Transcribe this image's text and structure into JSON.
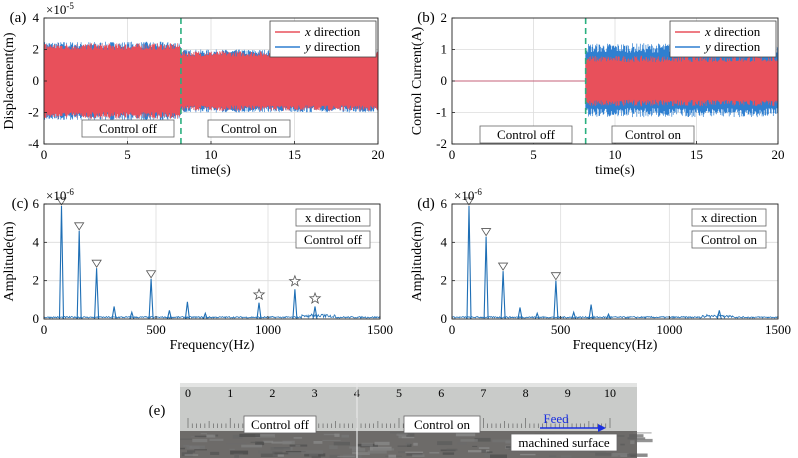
{
  "chart_data": [
    {
      "panel": "(a)",
      "type": "line",
      "xlabel": "time(s)",
      "ylabel": "Displacement(m)",
      "exponent_label": "×10",
      "exponent_power": "-5",
      "xlim": [
        0,
        20
      ],
      "ylim": [
        -4,
        4
      ],
      "xticks": [
        "0",
        "5",
        "10",
        "15",
        "20"
      ],
      "yticks": [
        "-4",
        "-2",
        "0",
        "2",
        "4"
      ],
      "switch_time": 8.2,
      "series": [
        {
          "name": "x direction",
          "color": "#e8505b",
          "envelope_before": [
            -2.4,
            2.4
          ],
          "envelope_after": [
            -1.9,
            1.9
          ]
        },
        {
          "name": "y direction",
          "color": "#2f7fd0",
          "envelope_before": [
            -2.5,
            2.5
          ],
          "envelope_after": [
            -2.0,
            2.0
          ]
        }
      ],
      "legend": {
        "placement": "top-right",
        "entries": [
          {
            "italic": "x",
            "text": " direction"
          },
          {
            "italic": "y",
            "text": " direction"
          }
        ]
      },
      "annotations": [
        "Control off",
        "Control on"
      ]
    },
    {
      "panel": "(b)",
      "type": "line",
      "xlabel": "time(s)",
      "ylabel": "Control Current(A)",
      "xlim": [
        0,
        20
      ],
      "ylim": [
        -2,
        2
      ],
      "xticks": [
        "0",
        "5",
        "10",
        "15",
        "20"
      ],
      "yticks": [
        "-2",
        "-1",
        "0",
        "1",
        "2"
      ],
      "switch_time": 8.2,
      "series": [
        {
          "name": "x direction",
          "color": "#e8505b",
          "value_before": 0,
          "envelope_after": [
            -0.8,
            0.8
          ]
        },
        {
          "name": "y direction",
          "color": "#2f7fd0",
          "value_before": 0,
          "envelope_after": [
            -1.15,
            1.2
          ]
        }
      ],
      "legend": {
        "placement": "top-right",
        "entries": [
          {
            "italic": "x",
            "text": " direction"
          },
          {
            "italic": "y",
            "text": " direction"
          }
        ]
      },
      "annotations": [
        "Control off",
        "Control on"
      ]
    },
    {
      "panel": "(c)",
      "type": "line",
      "xlabel": "Frequency(Hz)",
      "ylabel": "Amplitude(m)",
      "exponent_label": "×10",
      "exponent_power": "-6",
      "xlim": [
        0,
        1500
      ],
      "ylim": [
        0,
        6
      ],
      "xticks": [
        "0",
        "500",
        "1000",
        "1500"
      ],
      "yticks": [
        "0",
        "2",
        "4",
        "6"
      ],
      "color": "#1f6fb5",
      "peaks": [
        {
          "f": 78,
          "a": 5.9,
          "marker": "triangle"
        },
        {
          "f": 157,
          "a": 4.6,
          "marker": "triangle"
        },
        {
          "f": 235,
          "a": 2.65,
          "marker": "triangle"
        },
        {
          "f": 313,
          "a": 0.65
        },
        {
          "f": 392,
          "a": 0.35
        },
        {
          "f": 478,
          "a": 2.1,
          "marker": "triangle"
        },
        {
          "f": 560,
          "a": 0.45
        },
        {
          "f": 640,
          "a": 0.9
        },
        {
          "f": 720,
          "a": 0.3
        },
        {
          "f": 960,
          "a": 0.85,
          "marker": "star"
        },
        {
          "f": 1120,
          "a": 1.55,
          "marker": "star"
        },
        {
          "f": 1210,
          "a": 0.65,
          "marker": "star"
        }
      ],
      "annotations": [
        "x direction",
        "Control off"
      ]
    },
    {
      "panel": "(d)",
      "type": "line",
      "xlabel": "Frequency(Hz)",
      "ylabel": "Amplitude(m)",
      "exponent_label": "×10",
      "exponent_power": "-6",
      "xlim": [
        0,
        1500
      ],
      "ylim": [
        0,
        6
      ],
      "xticks": [
        "0",
        "500",
        "1000",
        "1500"
      ],
      "yticks": [
        "0",
        "2",
        "4",
        "6"
      ],
      "color": "#1f6fb5",
      "peaks": [
        {
          "f": 78,
          "a": 5.9,
          "marker": "triangle"
        },
        {
          "f": 157,
          "a": 4.3,
          "marker": "triangle"
        },
        {
          "f": 235,
          "a": 2.5,
          "marker": "triangle"
        },
        {
          "f": 313,
          "a": 0.6
        },
        {
          "f": 392,
          "a": 0.3
        },
        {
          "f": 478,
          "a": 2.0,
          "marker": "triangle"
        },
        {
          "f": 560,
          "a": 0.35
        },
        {
          "f": 640,
          "a": 0.75
        },
        {
          "f": 720,
          "a": 0.25
        },
        {
          "f": 1230,
          "a": 0.45
        }
      ],
      "annotations": [
        "x direction",
        "Control on"
      ]
    }
  ],
  "photo": {
    "panel": "(e)",
    "ruler_numbers": [
      "0",
      "1",
      "2",
      "3",
      "4",
      "5",
      "6",
      "7",
      "8",
      "9",
      "10"
    ],
    "labels": [
      "Control off",
      "Control on",
      "Feed",
      "machined surface"
    ],
    "feed_color": "#1a2fe0"
  }
}
